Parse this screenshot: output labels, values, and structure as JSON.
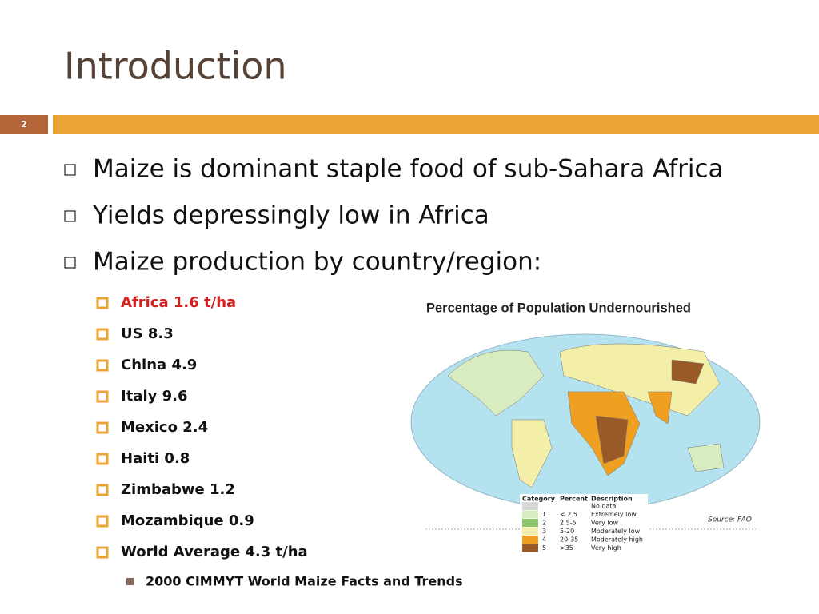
{
  "slide": {
    "title": "Introduction",
    "slide_number": "2",
    "bullets": [
      "Maize is dominant staple food of sub-Sahara Africa",
      "Yields depressingly low in Africa",
      "Maize production by country/region:"
    ],
    "sub_bullets": [
      "Africa 1.6 t/ha",
      "US 8.3",
      "China 4.9",
      "Italy 9.6",
      "Mexico 2.4",
      "Haiti 0.8",
      "Zimbabwe 1.2",
      "Mozambique 0.9",
      "World Average 4.3 t/ha"
    ],
    "citation": "2000 CIMMYT World Maize Facts and Trends",
    "map": {
      "title": "Percentage of Population Undernourished",
      "legend_headers": [
        "Category",
        "Percent",
        "Description"
      ],
      "legend_rows": [
        {
          "color": "#d8d8d8",
          "description": "No data"
        },
        {
          "color": "#d9ecc0",
          "category": "1",
          "percent": "< 2.5",
          "description": "Extremely low"
        },
        {
          "color": "#8cc56a",
          "category": "2",
          "percent": "2.5-5",
          "description": "Very low"
        },
        {
          "color": "#f4efa8",
          "category": "3",
          "percent": "5-20",
          "description": "Moderately low"
        },
        {
          "color": "#f0a020",
          "category": "4",
          "percent": "20-35",
          "description": "Moderately high"
        },
        {
          "color": "#9a5a28",
          "category": "5",
          "percent": ">35",
          "description": "Very high"
        }
      ],
      "source": "Source: FAO"
    }
  }
}
